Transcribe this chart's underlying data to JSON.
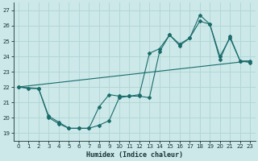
{
  "xlabel": "Humidex (Indice chaleur)",
  "bg_color": "#cce8e8",
  "grid_color": "#b0d4d4",
  "line_color": "#1a6b6b",
  "xlim": [
    -0.5,
    23.5
  ],
  "ylim": [
    18.5,
    27.5
  ],
  "xticks": [
    0,
    1,
    2,
    3,
    4,
    5,
    6,
    7,
    8,
    9,
    10,
    11,
    12,
    13,
    14,
    15,
    16,
    17,
    18,
    19,
    20,
    21,
    22,
    23
  ],
  "yticks": [
    19,
    20,
    21,
    22,
    23,
    24,
    25,
    26,
    27
  ],
  "line1_x": [
    0,
    1,
    2,
    3,
    4,
    5,
    6,
    7,
    8,
    9,
    10,
    11,
    12,
    13,
    14,
    15,
    16,
    17,
    18,
    19,
    20,
    21,
    22,
    23
  ],
  "line1_y": [
    22.0,
    21.9,
    21.9,
    20.0,
    19.6,
    19.3,
    19.3,
    19.3,
    19.5,
    19.8,
    21.3,
    21.4,
    21.4,
    21.3,
    24.3,
    25.4,
    24.8,
    25.2,
    26.7,
    26.1,
    23.8,
    25.3,
    23.7,
    23.7
  ],
  "line2_x": [
    0,
    2,
    3,
    4,
    5,
    6,
    7,
    8,
    9,
    10,
    11,
    12,
    13,
    14,
    15,
    16,
    17,
    18,
    19,
    20,
    21,
    22,
    23
  ],
  "line2_y": [
    22.0,
    21.9,
    20.1,
    19.7,
    19.3,
    19.3,
    19.3,
    20.7,
    21.5,
    21.4,
    21.4,
    21.5,
    24.2,
    24.5,
    25.4,
    24.7,
    25.2,
    26.3,
    26.1,
    24.0,
    25.2,
    23.7,
    23.6
  ],
  "line3_x": [
    0,
    23
  ],
  "line3_y": [
    22.0,
    23.7
  ],
  "xlabel_fontsize": 6,
  "tick_fontsize": 5
}
